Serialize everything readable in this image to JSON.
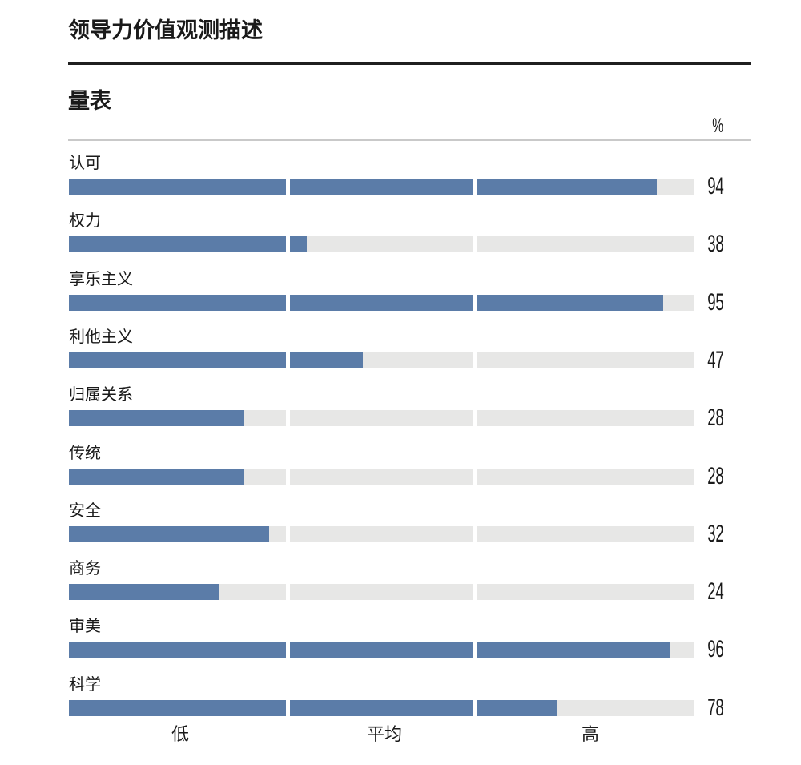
{
  "header": {
    "title": "领导力价值观测描述"
  },
  "scale_section": {
    "heading": "量表",
    "unit_label": "%"
  },
  "axis": {
    "labels": [
      "低",
      "平均",
      "高"
    ]
  },
  "colors": {
    "bar_fill": "#5b7ca8",
    "bar_track": "#e7e7e6",
    "divider_dark": "#1f1f1f",
    "divider_light": "#c9c9c9",
    "text": "#1a1a1a"
  },
  "chart_data": {
    "type": "bar",
    "orientation": "horizontal",
    "title": "领导力价值观测描述",
    "subtitle": "量表",
    "unit": "%",
    "xlim": [
      0,
      100
    ],
    "band_boundaries": [
      35,
      65
    ],
    "band_labels": [
      "低",
      "平均",
      "高"
    ],
    "grid": false,
    "categories": [
      "认可",
      "权力",
      "享乐主义",
      "利他主义",
      "归属关系",
      "传统",
      "安全",
      "商务",
      "审美",
      "科学"
    ],
    "values": [
      94,
      38,
      95,
      47,
      28,
      28,
      32,
      24,
      96,
      78
    ]
  }
}
